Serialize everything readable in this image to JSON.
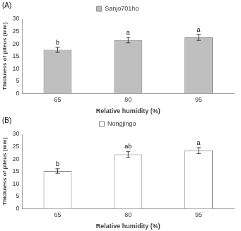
{
  "chart_data": [
    {
      "type": "bar",
      "panel": "(A)",
      "x_label": "Relative humidity (%)",
      "y_label": "Thickness of pileus (mm)",
      "categories": [
        "65",
        "80",
        "95"
      ],
      "series": [
        {
          "name": "Sanjo701ho",
          "color": "#bfbfbf",
          "values": [
            17.6,
            21.5,
            22.6
          ],
          "errors": [
            1.0,
            1.1,
            1.2
          ],
          "annotations": [
            "b",
            "a",
            "a"
          ]
        }
      ],
      "ylim": [
        0,
        30
      ],
      "yticks": [
        0,
        5,
        10,
        15,
        20,
        25,
        30
      ],
      "grid": false,
      "legend": "top"
    },
    {
      "type": "bar",
      "panel": "(B)",
      "x_label": "Relative humidity (%)",
      "y_label": "Thickness of pileus (mm)",
      "categories": [
        "65",
        "80",
        "95"
      ],
      "series": [
        {
          "name": "Nongjingo",
          "color": "#ffffff",
          "values": [
            15.2,
            21.9,
            23.4
          ],
          "errors": [
            0.9,
            1.2,
            1.2
          ],
          "annotations": [
            "b",
            "ab",
            "a"
          ]
        }
      ],
      "ylim": [
        0,
        30
      ],
      "yticks": [
        0,
        5,
        10,
        15,
        20,
        25,
        30
      ],
      "grid": false,
      "legend": "top"
    }
  ]
}
